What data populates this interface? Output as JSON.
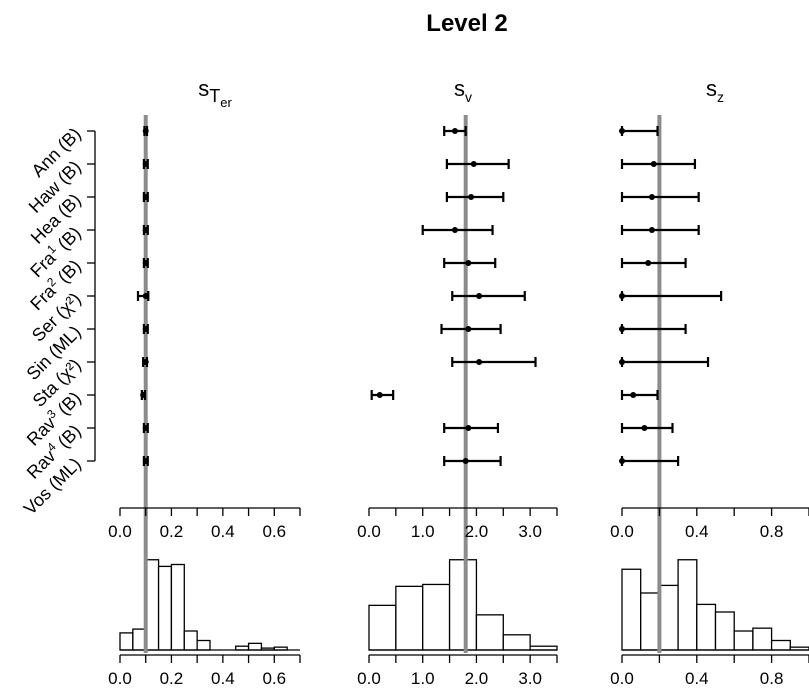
{
  "figure_title": "Level 2",
  "studies": [
    {
      "name": "Ann",
      "sup": "",
      "method": "(B)"
    },
    {
      "name": "Haw",
      "sup": "",
      "method": "(B)"
    },
    {
      "name": "Hea",
      "sup": "",
      "method": "(B)"
    },
    {
      "name": "Fra",
      "sup": "1",
      "method": "(B)"
    },
    {
      "name": "Fra",
      "sup": "2",
      "method": "(B)"
    },
    {
      "name": "Ser",
      "sup": "",
      "method": "(χ²)"
    },
    {
      "name": "Sin",
      "sup": "",
      "method": "(ML)"
    },
    {
      "name": "Sta",
      "sup": "",
      "method": "(χ²)"
    },
    {
      "name": "Rav",
      "sup": "3",
      "method": "(B)"
    },
    {
      "name": "Rav",
      "sup": "4",
      "method": "(B)"
    },
    {
      "name": "Vos",
      "sup": "",
      "method": "(ML)"
    }
  ],
  "chart_data": [
    {
      "type": "scatter",
      "panel": "sTer",
      "title_main": "s",
      "title_sub": "T",
      "title_subsub": "er",
      "xlim": [
        0,
        0.7
      ],
      "ticks": [
        "0.0",
        "0.2",
        "0.4",
        "0.6"
      ],
      "tick_values": [
        0,
        0.2,
        0.4,
        0.6
      ],
      "reference_value": 0.1,
      "estimates": [
        {
          "est": 0.1,
          "lo": 0.095,
          "hi": 0.105
        },
        {
          "est": 0.1,
          "lo": 0.093,
          "hi": 0.108
        },
        {
          "est": 0.1,
          "lo": 0.093,
          "hi": 0.108
        },
        {
          "est": 0.1,
          "lo": 0.093,
          "hi": 0.108
        },
        {
          "est": 0.1,
          "lo": 0.093,
          "hi": 0.108
        },
        {
          "est": 0.1,
          "lo": 0.07,
          "hi": 0.11
        },
        {
          "est": 0.1,
          "lo": 0.093,
          "hi": 0.108
        },
        {
          "est": 0.1,
          "lo": 0.09,
          "hi": 0.105
        },
        {
          "est": 0.09,
          "lo": 0.085,
          "hi": 0.097
        },
        {
          "est": 0.1,
          "lo": 0.093,
          "hi": 0.108
        },
        {
          "est": 0.1,
          "lo": 0.093,
          "hi": 0.108
        }
      ],
      "histogram": {
        "bin_edges": [
          0,
          0.05,
          0.1,
          0.15,
          0.2,
          0.25,
          0.3,
          0.35,
          0.4,
          0.45,
          0.5,
          0.55,
          0.6,
          0.65
        ],
        "heights": [
          0.18,
          0.22,
          0.95,
          0.88,
          0.9,
          0.2,
          0.1,
          0,
          0,
          0.04,
          0.07,
          0.02,
          0.03
        ]
      }
    },
    {
      "type": "scatter",
      "panel": "sv",
      "title_main": "s",
      "title_sub": "v",
      "title_subsub": "",
      "xlim": [
        0,
        3.5
      ],
      "ticks": [
        "0.0",
        "1.0",
        "2.0",
        "3.0"
      ],
      "tick_values": [
        0,
        1,
        2,
        3
      ],
      "reference_value": 1.8,
      "estimates": [
        {
          "est": 1.6,
          "lo": 1.4,
          "hi": 1.8
        },
        {
          "est": 1.95,
          "lo": 1.45,
          "hi": 2.6
        },
        {
          "est": 1.9,
          "lo": 1.45,
          "hi": 2.5
        },
        {
          "est": 1.6,
          "lo": 1.0,
          "hi": 2.3
        },
        {
          "est": 1.85,
          "lo": 1.4,
          "hi": 2.35
        },
        {
          "est": 2.05,
          "lo": 1.55,
          "hi": 2.9
        },
        {
          "est": 1.85,
          "lo": 1.35,
          "hi": 2.45
        },
        {
          "est": 2.05,
          "lo": 1.55,
          "hi": 3.1
        },
        {
          "est": 0.2,
          "lo": 0.05,
          "hi": 0.45
        },
        {
          "est": 1.85,
          "lo": 1.4,
          "hi": 2.4
        },
        {
          "est": 1.8,
          "lo": 1.4,
          "hi": 2.45
        }
      ],
      "histogram": {
        "bin_edges": [
          0,
          0.5,
          1.0,
          1.5,
          2.0,
          2.5,
          3.0,
          3.5
        ],
        "heights": [
          0.47,
          0.67,
          0.69,
          0.95,
          0.37,
          0.16,
          0.04
        ]
      }
    },
    {
      "type": "scatter",
      "panel": "sz",
      "title_main": "s",
      "title_sub": "z",
      "title_subsub": "",
      "xlim": [
        0,
        1.0
      ],
      "ticks": [
        "0.0",
        "0.4",
        "0.8"
      ],
      "tick_values": [
        0,
        0.4,
        0.8
      ],
      "reference_value": 0.2,
      "estimates": [
        {
          "est": 0.0,
          "lo": 0.0,
          "hi": 0.19
        },
        {
          "est": 0.17,
          "lo": 0.0,
          "hi": 0.39
        },
        {
          "est": 0.16,
          "lo": 0.0,
          "hi": 0.41
        },
        {
          "est": 0.16,
          "lo": 0.0,
          "hi": 0.41
        },
        {
          "est": 0.14,
          "lo": 0.0,
          "hi": 0.34
        },
        {
          "est": 0.0,
          "lo": 0.0,
          "hi": 0.53
        },
        {
          "est": 0.0,
          "lo": 0.0,
          "hi": 0.34
        },
        {
          "est": 0.0,
          "lo": 0.0,
          "hi": 0.46
        },
        {
          "est": 0.06,
          "lo": 0.0,
          "hi": 0.19
        },
        {
          "est": 0.12,
          "lo": 0.0,
          "hi": 0.27
        },
        {
          "est": 0.0,
          "lo": 0.0,
          "hi": 0.3
        }
      ],
      "histogram": {
        "bin_edges": [
          0,
          0.1,
          0.2,
          0.3,
          0.4,
          0.5,
          0.6,
          0.7,
          0.8,
          0.9,
          1.0
        ],
        "heights": [
          0.85,
          0.6,
          0.68,
          0.95,
          0.48,
          0.4,
          0.2,
          0.23,
          0.1,
          0.03
        ]
      }
    }
  ]
}
